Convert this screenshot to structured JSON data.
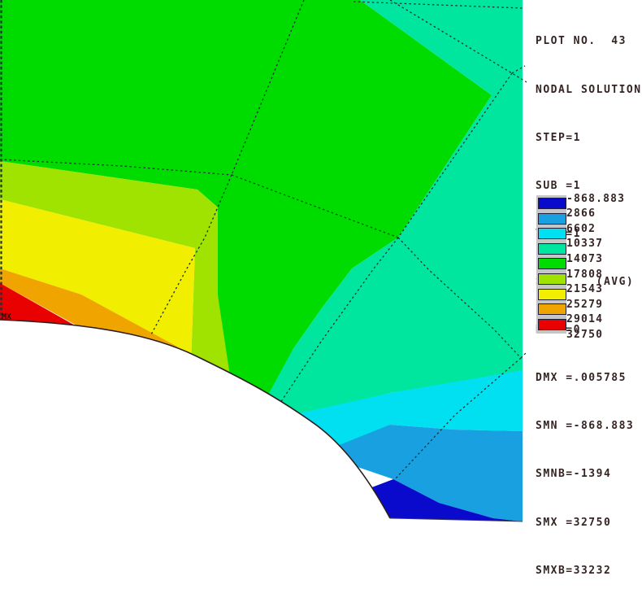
{
  "panel": {
    "lines": [
      "PLOT NO.  43",
      "NODAL SOLUTION",
      "STEP=1",
      "SUB =1",
      "TIME=1",
      "SX      (AVG)",
      "RSYS=0",
      "DMX =.005785",
      "SMN =-868.883",
      "SMNB=-1394",
      "SMX =32750",
      "SMXB=33232"
    ]
  },
  "legend": {
    "values": [
      "-868.883",
      "2866",
      "6602",
      "10337",
      "14073",
      "17808",
      "21543",
      "25279",
      "29014",
      "32750"
    ]
  },
  "plot": {
    "max_marker": "MX"
  },
  "chart_data": {
    "type": "heatmap",
    "subtype": "fea-filled-contour",
    "title": "NODAL SOLUTION",
    "quantity": "SX (AVG)",
    "plot_no": "43",
    "step": 1,
    "sub": 1,
    "time": 1,
    "rsys": 0,
    "dmx": 0.005785,
    "smn": -868.883,
    "smnb": -1394,
    "smx": 32750,
    "smxb": 33232,
    "legend_position": "right",
    "contour_levels": [
      -868.883,
      2866,
      6602,
      10337,
      14073,
      17808,
      21543,
      25279,
      29014,
      32750
    ],
    "band_colors": [
      "#0A0ACC",
      "#18A0E0",
      "#00E0F0",
      "#00E69E",
      "#00DB00",
      "#A0E200",
      "#F2EE00",
      "#F0A400",
      "#E90000"
    ],
    "bands": [
      {
        "from": -868.883,
        "to": 2866,
        "color": "#0A0ACC",
        "location": "bottom-right corner wedge"
      },
      {
        "from": 2866,
        "to": 6602,
        "color": "#18A0E0",
        "location": "bottom-right band"
      },
      {
        "from": 6602,
        "to": 10337,
        "color": "#00E0F0",
        "location": "lower-right band"
      },
      {
        "from": 10337,
        "to": 14073,
        "color": "#00E69E",
        "location": "upper-right / right region"
      },
      {
        "from": 14073,
        "to": 17808,
        "color": "#00DB00",
        "location": "large central / top-left region"
      },
      {
        "from": 17808,
        "to": 21543,
        "color": "#A0E200",
        "location": "left band"
      },
      {
        "from": 21543,
        "to": 25279,
        "color": "#F2EE00",
        "location": "left band"
      },
      {
        "from": 25279,
        "to": 29014,
        "color": "#F0A400",
        "location": "lower-left band"
      },
      {
        "from": 29014,
        "to": 32750,
        "color": "#E90000",
        "location": "bottom-left corner at hole edge (MX)"
      }
    ],
    "geometry_note": "quarter plate with circular hole, white hole region lower-left, dashed element boundaries"
  }
}
